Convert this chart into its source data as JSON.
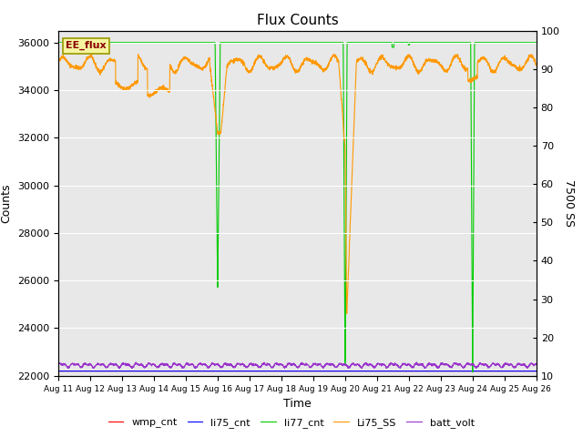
{
  "title": "Flux Counts",
  "xlabel": "Time",
  "ylabel_left": "Counts",
  "ylabel_right": "7500 SS",
  "annotation": "EE_flux",
  "ylim_left": [
    22000,
    36500
  ],
  "ylim_right": [
    10,
    100
  ],
  "yticks_left": [
    22000,
    24000,
    26000,
    28000,
    30000,
    32000,
    34000,
    36000
  ],
  "yticks_right": [
    10,
    20,
    30,
    40,
    50,
    60,
    70,
    80,
    90,
    100
  ],
  "xtick_labels": [
    "Aug 11",
    "Aug 12",
    "Aug 13",
    "Aug 14",
    "Aug 15",
    "Aug 16",
    "Aug 17",
    "Aug 18",
    "Aug 19",
    "Aug 20",
    "Aug 21",
    "Aug 22",
    "Aug 23",
    "Aug 24",
    "Aug 25",
    "Aug 26"
  ],
  "n_days": 15,
  "colors": {
    "wmp_cnt": "#ff0000",
    "li75_cnt": "#0000ff",
    "li77_cnt": "#00cc00",
    "Li75_SS": "#ff9900",
    "batt_volt": "#9933cc"
  },
  "bg_color": "#e8e8e8",
  "grid_color": "#ffffff",
  "legend_entries": [
    "wmp_cnt",
    "li75_cnt",
    "li77_cnt",
    "Li75_SS",
    "batt_volt"
  ]
}
